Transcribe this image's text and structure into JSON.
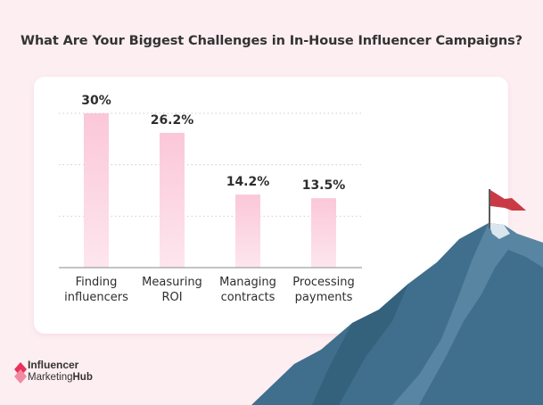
{
  "title": "What Are Your Biggest Challenges in In-House Influencer Campaigns?",
  "colors": {
    "background": "#fdeef2",
    "card": "#ffffff",
    "bar_top": "#fbc7d9",
    "bar_bottom": "#fde3ec",
    "grid": "#cfcfcf",
    "brand": "#e8325b",
    "mountain": "#3d6f8e",
    "flag": "#c93a45"
  },
  "chart_data": {
    "type": "bar",
    "title": "What Are Your Biggest Challenges in In-House Influencer Campaigns?",
    "categories": [
      "Finding influencers",
      "Measuring ROI",
      "Managing contracts",
      "Processing payments"
    ],
    "category_lines": [
      [
        "Finding",
        "influencers"
      ],
      [
        "Measuring",
        "ROI"
      ],
      [
        "Managing",
        "contracts"
      ],
      [
        "Processing",
        "payments"
      ]
    ],
    "values": [
      30,
      26.2,
      14.2,
      13.5
    ],
    "value_labels": [
      "30%",
      "26.2%",
      "14.2%",
      "13.5%"
    ],
    "unit": "%",
    "xlabel": "",
    "ylabel": "",
    "ylim": [
      0,
      30
    ],
    "grid": true
  },
  "logo": {
    "line1": "Influencer",
    "line2_a": "Marketing",
    "line2_b": "Hub",
    "icon": "brand-diamond-icon"
  }
}
